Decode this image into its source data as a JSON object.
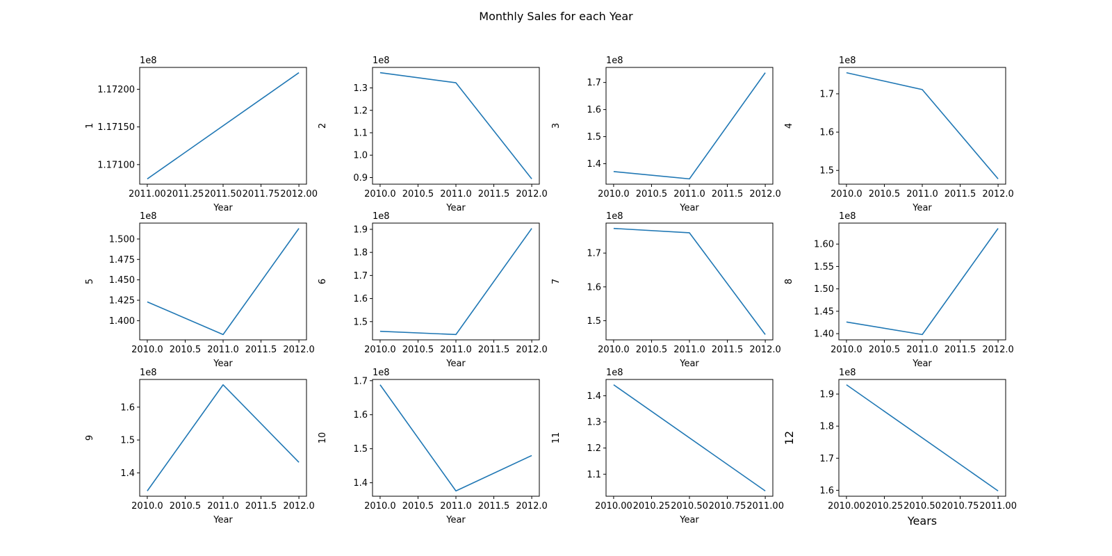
{
  "figure": {
    "title": "Monthly Sales for each Year",
    "line_color": "#1f77b4"
  },
  "chart_data": [
    {
      "type": "line",
      "title": "",
      "xlabel": "Year",
      "ylabel": "1",
      "x": [
        2011,
        2012
      ],
      "values": [
        117081000,
        117222000
      ],
      "xlim": [
        2010.95,
        2012.05
      ],
      "ylim": [
        117074000,
        117229000
      ],
      "xticks": [
        2011.0,
        2011.25,
        2011.5,
        2011.75,
        2012.0
      ],
      "xtick_labels": [
        "2011.00",
        "2011.25",
        "2011.50",
        "2011.75",
        "2012.00"
      ],
      "yticks": [
        117100000,
        117150000,
        117200000
      ],
      "ytick_labels": [
        "1.17100",
        "1.17150",
        "1.17200"
      ],
      "offset_label": "1e8"
    },
    {
      "type": "line",
      "title": "",
      "xlabel": "Year",
      "ylabel": "2",
      "x": [
        2010,
        2011,
        2012
      ],
      "values": [
        136800000,
        132300000,
        89400000
      ],
      "xlim": [
        2009.9,
        2012.1
      ],
      "ylim": [
        87050000,
        139150000
      ],
      "xticks": [
        2010.0,
        2010.5,
        2011.0,
        2011.5,
        2012.0
      ],
      "xtick_labels": [
        "2010.0",
        "2010.5",
        "2011.0",
        "2011.5",
        "2012.0"
      ],
      "yticks": [
        90000000,
        100000000,
        110000000,
        120000000,
        130000000
      ],
      "ytick_labels": [
        "0.9",
        "1.0",
        "1.1",
        "1.2",
        "1.3"
      ],
      "offset_label": "1e8"
    },
    {
      "type": "line",
      "title": "",
      "xlabel": "Year",
      "ylabel": "3",
      "x": [
        2010,
        2011,
        2012
      ],
      "values": [
        137100000,
        134400000,
        173600000
      ],
      "xlim": [
        2009.9,
        2012.1
      ],
      "ylim": [
        132440000,
        175560000
      ],
      "xticks": [
        2010.0,
        2010.5,
        2011.0,
        2011.5,
        2012.0
      ],
      "xtick_labels": [
        "2010.0",
        "2010.5",
        "2011.0",
        "2011.5",
        "2012.0"
      ],
      "yticks": [
        140000000,
        150000000,
        160000000,
        170000000
      ],
      "ytick_labels": [
        "1.4",
        "1.5",
        "1.6",
        "1.7"
      ],
      "offset_label": "1e8"
    },
    {
      "type": "line",
      "title": "",
      "xlabel": "Year",
      "ylabel": "4",
      "x": [
        2010,
        2011,
        2012
      ],
      "values": [
        175500000,
        171100000,
        147800000
      ],
      "xlim": [
        2009.9,
        2012.1
      ],
      "ylim": [
        146415000,
        176885000
      ],
      "xticks": [
        2010.0,
        2010.5,
        2011.0,
        2011.5,
        2012.0
      ],
      "xtick_labels": [
        "2010.0",
        "2010.5",
        "2011.0",
        "2011.5",
        "2012.0"
      ],
      "yticks": [
        150000000,
        160000000,
        170000000
      ],
      "ytick_labels": [
        "1.5",
        "1.6",
        "1.7"
      ],
      "offset_label": "1e8"
    },
    {
      "type": "line",
      "title": "",
      "xlabel": "Year",
      "ylabel": "5",
      "x": [
        2010,
        2011,
        2012
      ],
      "values": [
        142300000,
        138300000,
        151300000
      ],
      "xlim": [
        2009.9,
        2012.1
      ],
      "ylim": [
        137650000,
        151950000
      ],
      "xticks": [
        2010.0,
        2010.5,
        2011.0,
        2011.5,
        2012.0
      ],
      "xtick_labels": [
        "2010.0",
        "2010.5",
        "2011.0",
        "2011.5",
        "2012.0"
      ],
      "yticks": [
        140000000,
        142500000,
        145000000,
        147500000,
        150000000
      ],
      "ytick_labels": [
        "1.400",
        "1.425",
        "1.450",
        "1.475",
        "1.500"
      ],
      "offset_label": "1e8"
    },
    {
      "type": "line",
      "title": "",
      "xlabel": "Year",
      "ylabel": "6",
      "x": [
        2010,
        2011,
        2012
      ],
      "values": [
        145800000,
        144400000,
        190400000
      ],
      "xlim": [
        2009.9,
        2012.1
      ],
      "ylim": [
        142100000,
        192700000
      ],
      "xticks": [
        2010.0,
        2010.5,
        2011.0,
        2011.5,
        2012.0
      ],
      "xtick_labels": [
        "2010.0",
        "2010.5",
        "2011.0",
        "2011.5",
        "2012.0"
      ],
      "yticks": [
        150000000,
        160000000,
        170000000,
        180000000,
        190000000
      ],
      "ytick_labels": [
        "1.5",
        "1.6",
        "1.7",
        "1.8",
        "1.9"
      ],
      "offset_label": "1e8"
    },
    {
      "type": "line",
      "title": "",
      "xlabel": "Year",
      "ylabel": "7",
      "x": [
        2010,
        2011,
        2012
      ],
      "values": [
        177300000,
        176000000,
        145900000
      ],
      "xlim": [
        2009.9,
        2012.1
      ],
      "ylim": [
        144330000,
        178870000
      ],
      "xticks": [
        2010.0,
        2010.5,
        2011.0,
        2011.5,
        2012.0
      ],
      "xtick_labels": [
        "2010.0",
        "2010.5",
        "2011.0",
        "2011.5",
        "2012.0"
      ],
      "yticks": [
        150000000,
        160000000,
        170000000
      ],
      "ytick_labels": [
        "1.5",
        "1.6",
        "1.7"
      ],
      "offset_label": "1e8"
    },
    {
      "type": "line",
      "title": "",
      "xlabel": "Year",
      "ylabel": "8",
      "x": [
        2010,
        2011,
        2012
      ],
      "values": [
        142600000,
        139800000,
        163500000
      ],
      "xlim": [
        2009.9,
        2012.1
      ],
      "ylim": [
        138615000,
        164685000
      ],
      "xticks": [
        2010.0,
        2010.5,
        2011.0,
        2011.5,
        2012.0
      ],
      "xtick_labels": [
        "2010.0",
        "2010.5",
        "2011.0",
        "2011.5",
        "2012.0"
      ],
      "yticks": [
        140000000,
        145000000,
        150000000,
        155000000,
        160000000
      ],
      "ytick_labels": [
        "1.40",
        "1.45",
        "1.50",
        "1.55",
        "1.60"
      ],
      "offset_label": "1e8"
    },
    {
      "type": "line",
      "title": "",
      "xlabel": "Year",
      "ylabel": "9",
      "x": [
        2010,
        2011,
        2012
      ],
      "values": [
        134500000,
        166800000,
        143200000
      ],
      "xlim": [
        2009.9,
        2012.1
      ],
      "ylim": [
        132885000,
        168415000
      ],
      "xticks": [
        2010.0,
        2010.5,
        2011.0,
        2011.5,
        2012.0
      ],
      "xtick_labels": [
        "2010.0",
        "2010.5",
        "2011.0",
        "2011.5",
        "2012.0"
      ],
      "yticks": [
        140000000,
        150000000,
        160000000
      ],
      "ytick_labels": [
        "1.4",
        "1.5",
        "1.6"
      ],
      "offset_label": "1e8"
    },
    {
      "type": "line",
      "title": "",
      "xlabel": "Year",
      "ylabel": "10",
      "x": [
        2010,
        2011,
        2012
      ],
      "values": [
        168800000,
        137600000,
        148000000
      ],
      "xlim": [
        2009.9,
        2012.1
      ],
      "ylim": [
        136040000,
        170360000
      ],
      "xticks": [
        2010.0,
        2010.5,
        2011.0,
        2011.5,
        2012.0
      ],
      "xtick_labels": [
        "2010.0",
        "2010.5",
        "2011.0",
        "2011.5",
        "2012.0"
      ],
      "yticks": [
        140000000,
        150000000,
        160000000,
        170000000
      ],
      "ytick_labels": [
        "1.4",
        "1.5",
        "1.6",
        "1.7"
      ],
      "offset_label": "1e8"
    },
    {
      "type": "line",
      "title": "",
      "xlabel": "Year",
      "ylabel": "11",
      "x": [
        2010,
        2011
      ],
      "values": [
        144200000,
        103600000
      ],
      "xlim": [
        2009.95,
        2011.05
      ],
      "ylim": [
        101570000,
        146230000
      ],
      "xticks": [
        2010.0,
        2010.25,
        2010.5,
        2010.75,
        2011.0
      ],
      "xtick_labels": [
        "2010.00",
        "2010.25",
        "2010.50",
        "2010.75",
        "2011.00"
      ],
      "yticks": [
        110000000,
        120000000,
        130000000,
        140000000
      ],
      "ytick_labels": [
        "1.1",
        "1.2",
        "1.3",
        "1.4"
      ],
      "offset_label": "1e8"
    },
    {
      "type": "line",
      "title": "",
      "xlabel": "Years",
      "ylabel": "12",
      "x": [
        2010,
        2011
      ],
      "values": [
        192900000,
        159800000
      ],
      "xlim": [
        2009.95,
        2011.05
      ],
      "ylim": [
        158145000,
        194555000
      ],
      "xticks": [
        2010.0,
        2010.25,
        2010.5,
        2010.75,
        2011.0
      ],
      "xtick_labels": [
        "2010.00",
        "2010.25",
        "2010.50",
        "2010.75",
        "2011.00"
      ],
      "yticks": [
        160000000,
        170000000,
        180000000,
        190000000
      ],
      "ytick_labels": [
        "1.6",
        "1.7",
        "1.8",
        "1.9"
      ],
      "offset_label": "1e8",
      "label_size": "large"
    }
  ]
}
